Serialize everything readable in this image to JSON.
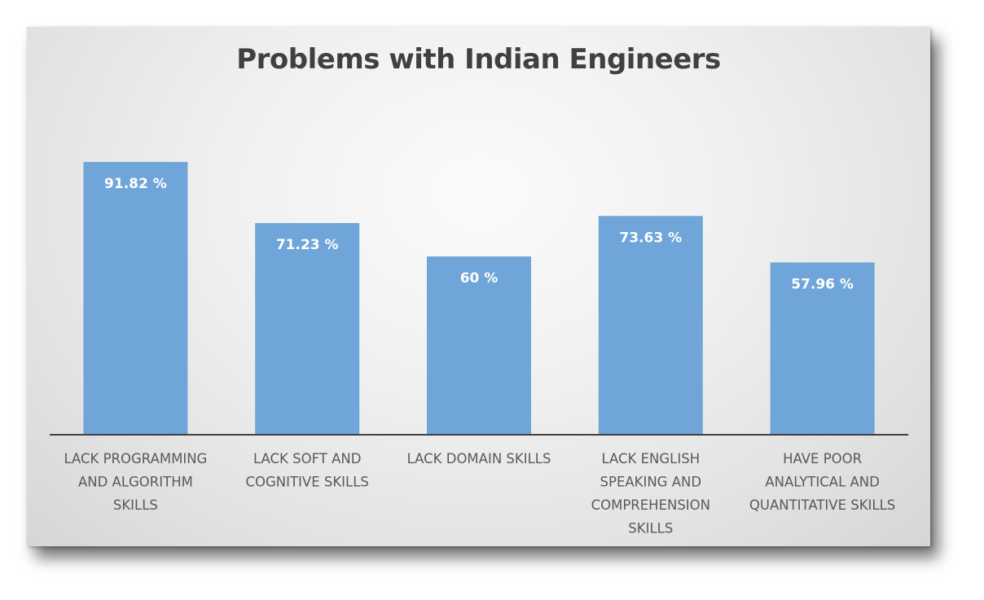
{
  "chart_data": {
    "type": "bar",
    "title": "Problems with Indian Engineers",
    "xlabel": "",
    "ylabel": "",
    "categories": [
      "LACK PROGRAMMING AND ALGORITHM SKILLS",
      "LACK SOFT AND COGNITIVE SKILLS",
      "LACK DOMAIN SKILLS",
      "LACK ENGLISH SPEAKING AND COMPREHENSION SKILLS",
      "HAVE POOR ANALYTICAL AND QUANTITATIVE SKILLS"
    ],
    "category_lines": [
      [
        "LACK PROGRAMMING",
        "AND ALGORITHM",
        "SKILLS"
      ],
      [
        "LACK SOFT AND",
        "COGNITIVE SKILLS"
      ],
      [
        "LACK DOMAIN SKILLS"
      ],
      [
        "LACK ENGLISH",
        "SPEAKING AND",
        "COMPREHENSION",
        "SKILLS"
      ],
      [
        "HAVE POOR",
        "ANALYTICAL AND",
        "QUANTITATIVE SKILLS"
      ]
    ],
    "values": [
      91.82,
      71.23,
      60,
      73.63,
      57.96
    ],
    "data_labels": [
      "91.82 %",
      "71.23 %",
      "60 %",
      "73.63 %",
      "57.96 %"
    ],
    "ylim": [
      0,
      100
    ],
    "grid": false,
    "legend": "none",
    "bar_color": "#6fa5d8"
  }
}
